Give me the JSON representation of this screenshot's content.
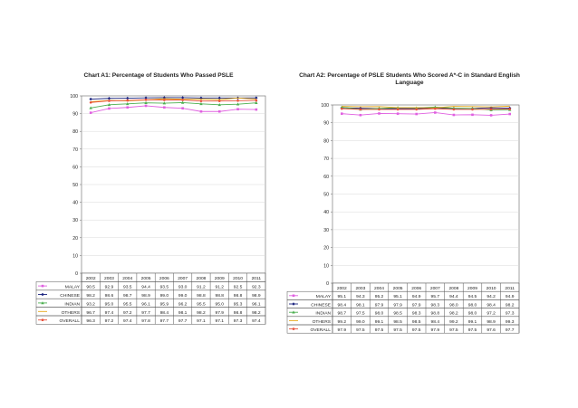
{
  "chart_data": [
    {
      "type": "line",
      "title": "Chart A1: Percentage of Students Who Passed PSLE",
      "categories": [
        "2002",
        "2003",
        "2004",
        "2005",
        "2006",
        "2007",
        "2008",
        "2009",
        "2010",
        "2011"
      ],
      "ylim": [
        0,
        100
      ],
      "yticks": [
        "0",
        "10",
        "20",
        "30",
        "40",
        "50",
        "60",
        "70",
        "80",
        "90",
        "100"
      ],
      "grid": true,
      "series": [
        {
          "name": "MALAY",
          "color": "#e060e0",
          "marker": "square",
          "values": [
            90.5,
            92.9,
            93.5,
            94.4,
            93.5,
            93.0,
            91.2,
            91.2,
            92.5,
            92.3
          ]
        },
        {
          "name": "CHINESE",
          "color": "#1a237e",
          "marker": "diamond",
          "values": [
            98.2,
            98.6,
            98.7,
            98.9,
            99.0,
            99.0,
            98.8,
            98.8,
            98.8,
            98.9
          ]
        },
        {
          "name": "INDIAN",
          "color": "#4caf50",
          "marker": "triangle",
          "values": [
            93.2,
            95.0,
            95.5,
            96.1,
            95.9,
            96.2,
            95.5,
            95.0,
            95.3,
            96.1
          ]
        },
        {
          "name": "OTHERS",
          "color": "#e6a817",
          "marker": "none",
          "values": [
            96.7,
            97.4,
            97.2,
            97.7,
            98.4,
            98.1,
            98.2,
            97.9,
            98.8,
            98.2
          ]
        },
        {
          "name": "OVERALL",
          "color": "#e8503a",
          "marker": "circle",
          "values": [
            96.3,
            97.2,
            97.4,
            97.8,
            97.7,
            97.7,
            97.1,
            97.1,
            97.3,
            97.4
          ]
        }
      ]
    },
    {
      "type": "line",
      "title": "Chart A2: Percentage of PSLE Students Who Scored A*-C in Standard English Language",
      "categories": [
        "2002",
        "2003",
        "2004",
        "2005",
        "2006",
        "2007",
        "2008",
        "2009",
        "2010",
        "2011"
      ],
      "ylim": [
        0,
        100
      ],
      "yticks": [
        "0",
        "10",
        "20",
        "30",
        "40",
        "50",
        "60",
        "70",
        "80",
        "90",
        "100"
      ],
      "grid": true,
      "series": [
        {
          "name": "MALAY",
          "color": "#e060e0",
          "marker": "square",
          "values": [
            95.1,
            94.3,
            95.2,
            95.1,
            94.9,
            95.7,
            94.4,
            94.5,
            94.2,
            94.9
          ]
        },
        {
          "name": "CHINESE",
          "color": "#1a237e",
          "marker": "diamond",
          "values": [
            98.4,
            98.1,
            97.9,
            97.9,
            97.9,
            98.3,
            98.0,
            98.0,
            98.4,
            98.2
          ]
        },
        {
          "name": "INDIAN",
          "color": "#4caf50",
          "marker": "triangle",
          "values": [
            98.7,
            97.5,
            98.0,
            98.5,
            98.3,
            98.8,
            98.2,
            98.0,
            97.2,
            97.3
          ]
        },
        {
          "name": "OTHERS",
          "color": "#e6a817",
          "marker": "none",
          "values": [
            99.2,
            99.0,
            99.1,
            98.5,
            98.5,
            98.4,
            99.2,
            99.1,
            98.9,
            99.3
          ]
        },
        {
          "name": "OVERALL",
          "color": "#e8503a",
          "marker": "circle",
          "values": [
            97.9,
            97.5,
            97.5,
            97.5,
            97.5,
            97.9,
            97.5,
            97.5,
            97.6,
            97.7
          ]
        }
      ]
    }
  ]
}
